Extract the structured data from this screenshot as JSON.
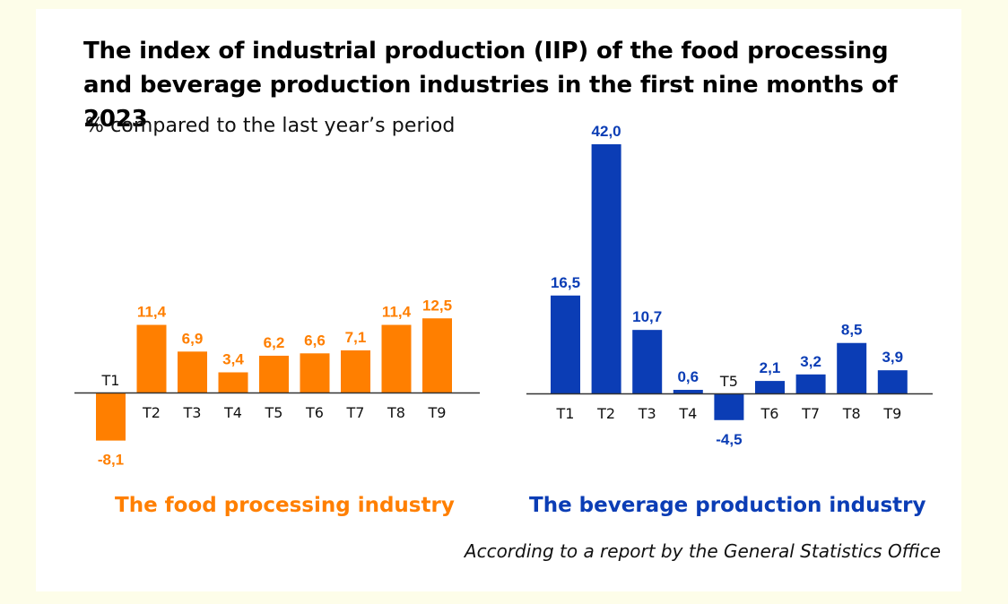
{
  "chart_data": [
    {
      "type": "bar",
      "title": "The index of industrial production (IIP) of the food processing and beverage production industries in the first nine months of 2023",
      "subtitle": "% compared to the last year’s period",
      "series_name": "The food processing industry",
      "color": "#ff7f00",
      "categories": [
        "T1",
        "T2",
        "T3",
        "T4",
        "T5",
        "T6",
        "T7",
        "T8",
        "T9"
      ],
      "values": [
        -8.1,
        11.4,
        6.9,
        3.4,
        6.2,
        6.6,
        7.1,
        11.4,
        12.5
      ],
      "value_labels": [
        "-8,1",
        "11,4",
        "6,9",
        "3,4",
        "6,2",
        "6,6",
        "7,1",
        "11,4",
        "12,5"
      ],
      "xlabel": "",
      "ylabel": "",
      "grid": false
    },
    {
      "type": "bar",
      "series_name": "The beverage production industry",
      "color": "#0b3db5",
      "categories": [
        "T1",
        "T2",
        "T3",
        "T4",
        "T5",
        "T6",
        "T7",
        "T8",
        "T9"
      ],
      "values": [
        16.5,
        42.0,
        10.7,
        0.6,
        -4.5,
        2.1,
        3.2,
        8.5,
        3.9
      ],
      "value_labels": [
        "16,5",
        "42,0",
        "10,7",
        "0,6",
        "-4,5",
        "2,1",
        "3,2",
        "8,5",
        "3,9"
      ],
      "xlabel": "",
      "ylabel": "",
      "grid": false
    }
  ],
  "header": {
    "title": "The index of industrial production (IIP) of the food processing and beverage production industries in the first nine months of 2023",
    "subtitle": "% compared to the last year’s period"
  },
  "legend": {
    "food": "The food processing industry",
    "beverage": "The beverage production industry"
  },
  "footer": {
    "source": "According to a report by the General Statistics Office"
  }
}
